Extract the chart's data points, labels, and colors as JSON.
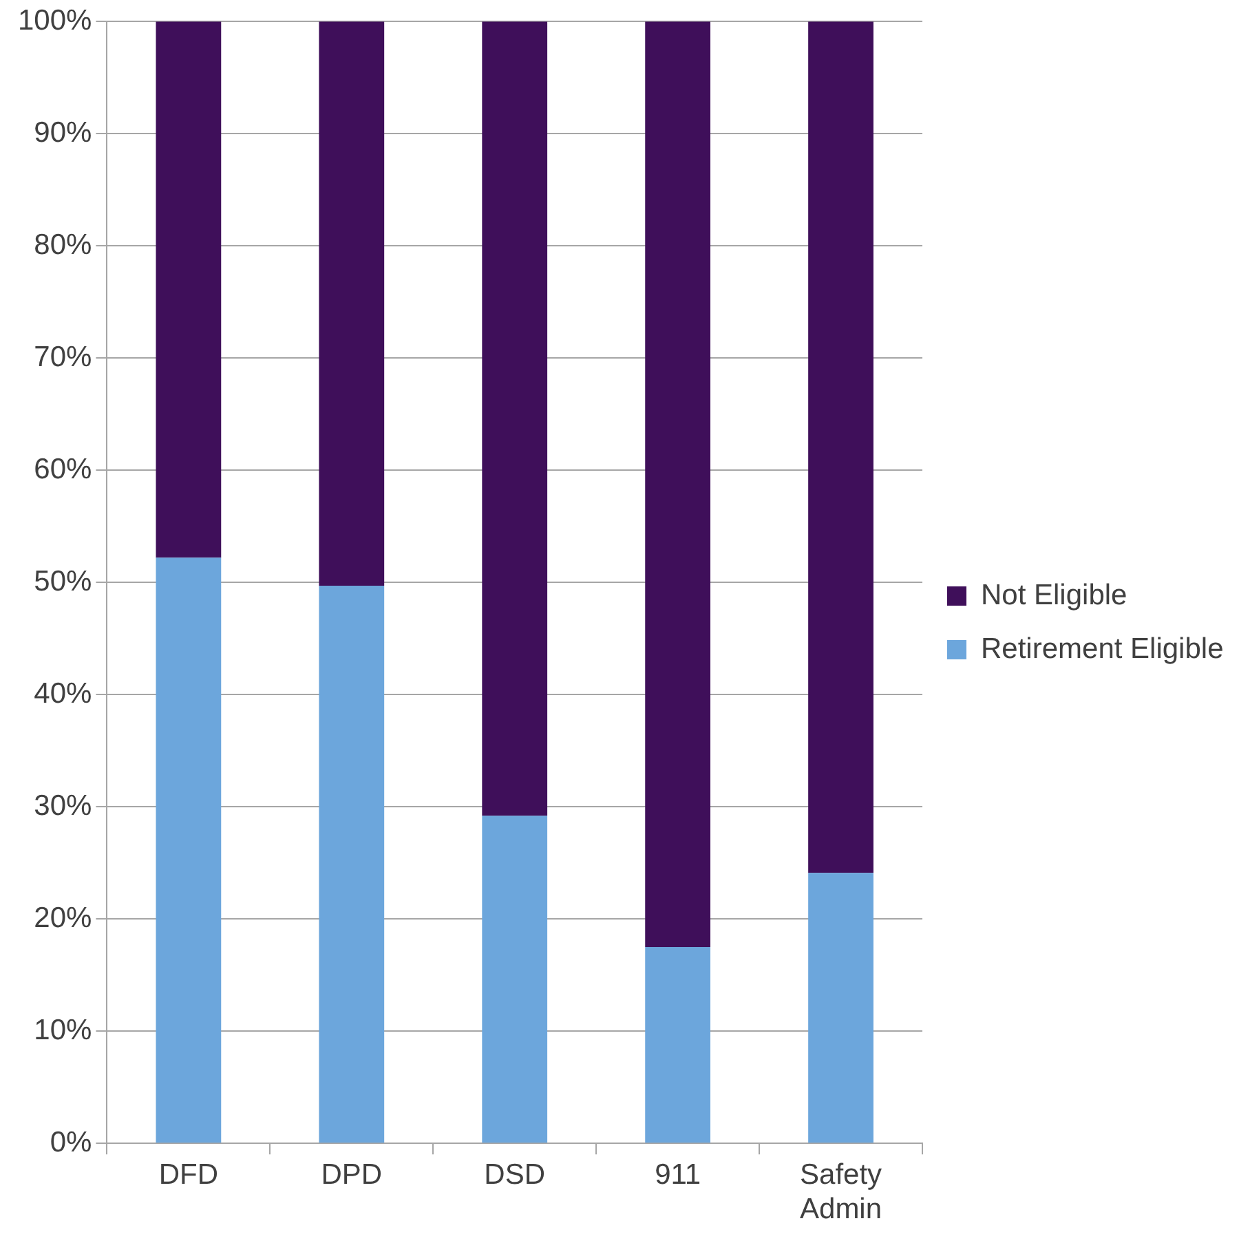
{
  "chart_data": {
    "type": "bar",
    "stacked": true,
    "categories": [
      "DFD",
      "DPD",
      "DSD",
      "911",
      "Safety Admin"
    ],
    "series": [
      {
        "name": "Retirement Eligible",
        "color": "#6ca6dc",
        "values": [
          52.2,
          49.7,
          29.2,
          17.5,
          24.1
        ]
      },
      {
        "name": "Not Eligible",
        "color": "#3f0f5a",
        "values": [
          47.8,
          50.3,
          70.8,
          82.5,
          75.9
        ]
      }
    ],
    "ylim": [
      0,
      100
    ],
    "yticks": [
      {
        "value": 0,
        "label": "0%"
      },
      {
        "value": 10,
        "label": "10%"
      },
      {
        "value": 20,
        "label": "20%"
      },
      {
        "value": 30,
        "label": "30%"
      },
      {
        "value": 40,
        "label": "40%"
      },
      {
        "value": 50,
        "label": "50%"
      },
      {
        "value": 60,
        "label": "60%"
      },
      {
        "value": 70,
        "label": "70%"
      },
      {
        "value": 80,
        "label": "80%"
      },
      {
        "value": 90,
        "label": "90%"
      },
      {
        "value": 100,
        "label": "100%"
      }
    ],
    "grid": "y",
    "legend": "right"
  }
}
